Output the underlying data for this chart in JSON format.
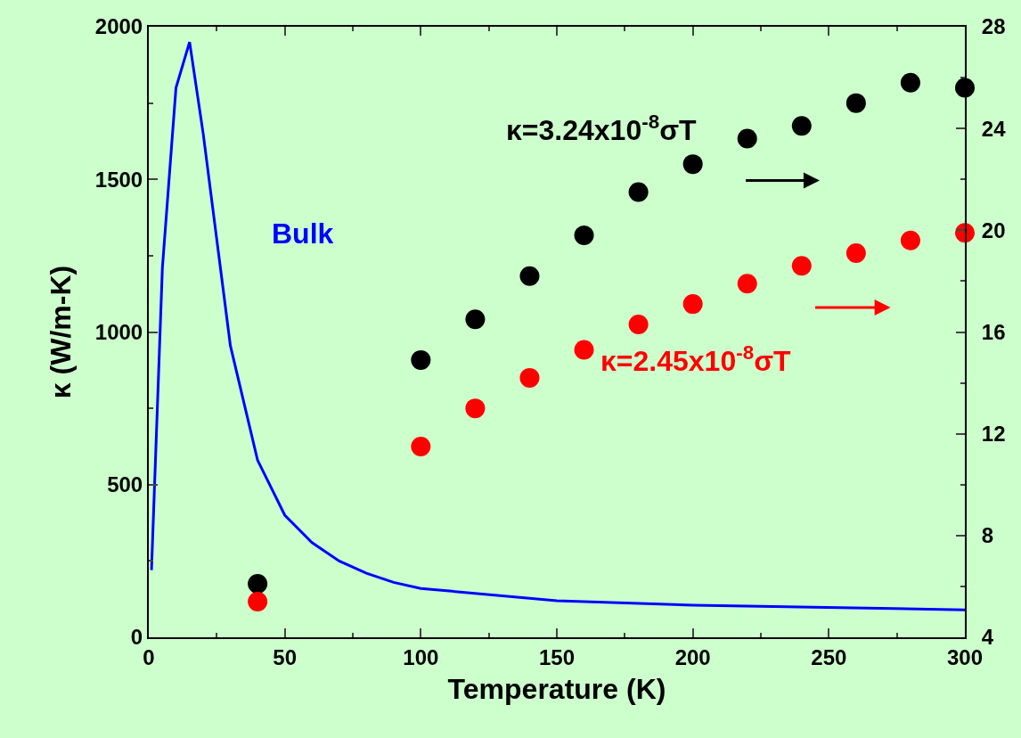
{
  "chart_data": {
    "type": "line",
    "xlabel": "Temperature (K)",
    "ylabel": "κ (W/m-K)",
    "xlim": [
      0,
      300
    ],
    "xticks": [
      0,
      50,
      100,
      150,
      200,
      250,
      300
    ],
    "ylim": [
      0,
      2000
    ],
    "yticks": [
      0,
      500,
      1000,
      1500,
      2000
    ],
    "y2lim": [
      4,
      28
    ],
    "y2ticks": [
      4,
      8,
      12,
      16,
      20,
      24,
      28
    ],
    "grid": false,
    "annotations": [
      "Bulk",
      "κ=3.24x10$^{-8}$σT",
      "κ=2.45x10$^{-8}$σT"
    ],
    "series": [
      {
        "color": "#0000ff",
        "line_style": "solid",
        "marker": "none",
        "x": [
          1,
          5,
          10,
          15,
          20,
          30,
          40,
          50,
          60,
          70,
          80,
          90,
          100,
          150,
          200,
          300
        ],
        "values": [
          220,
          1210,
          1800,
          1950,
          1650,
          955,
          580,
          400,
          310,
          250,
          210,
          180,
          160,
          120,
          105,
          90
        ]
      },
      {
        "type": "scatter",
        "axis": "y2",
        "color": "#000000",
        "marker": "circle",
        "x": [
          40,
          100,
          120,
          140,
          160,
          180,
          200,
          220,
          240,
          260,
          280,
          300
        ],
        "values": [
          6.1,
          14.9,
          16.5,
          18.2,
          19.8,
          21.5,
          22.6,
          23.6,
          24.1,
          25.0,
          25.8,
          25.6
        ]
      },
      {
        "type": "scatter",
        "axis": "y2",
        "color": "#ff0000",
        "marker": "circle",
        "x": [
          40,
          100,
          120,
          140,
          160,
          180,
          200,
          220,
          240,
          260,
          280,
          300
        ],
        "values": [
          5.4,
          11.5,
          13.0,
          14.2,
          15.3,
          16.3,
          17.1,
          17.9,
          18.6,
          19.1,
          19.6,
          19.9
        ]
      }
    ]
  }
}
